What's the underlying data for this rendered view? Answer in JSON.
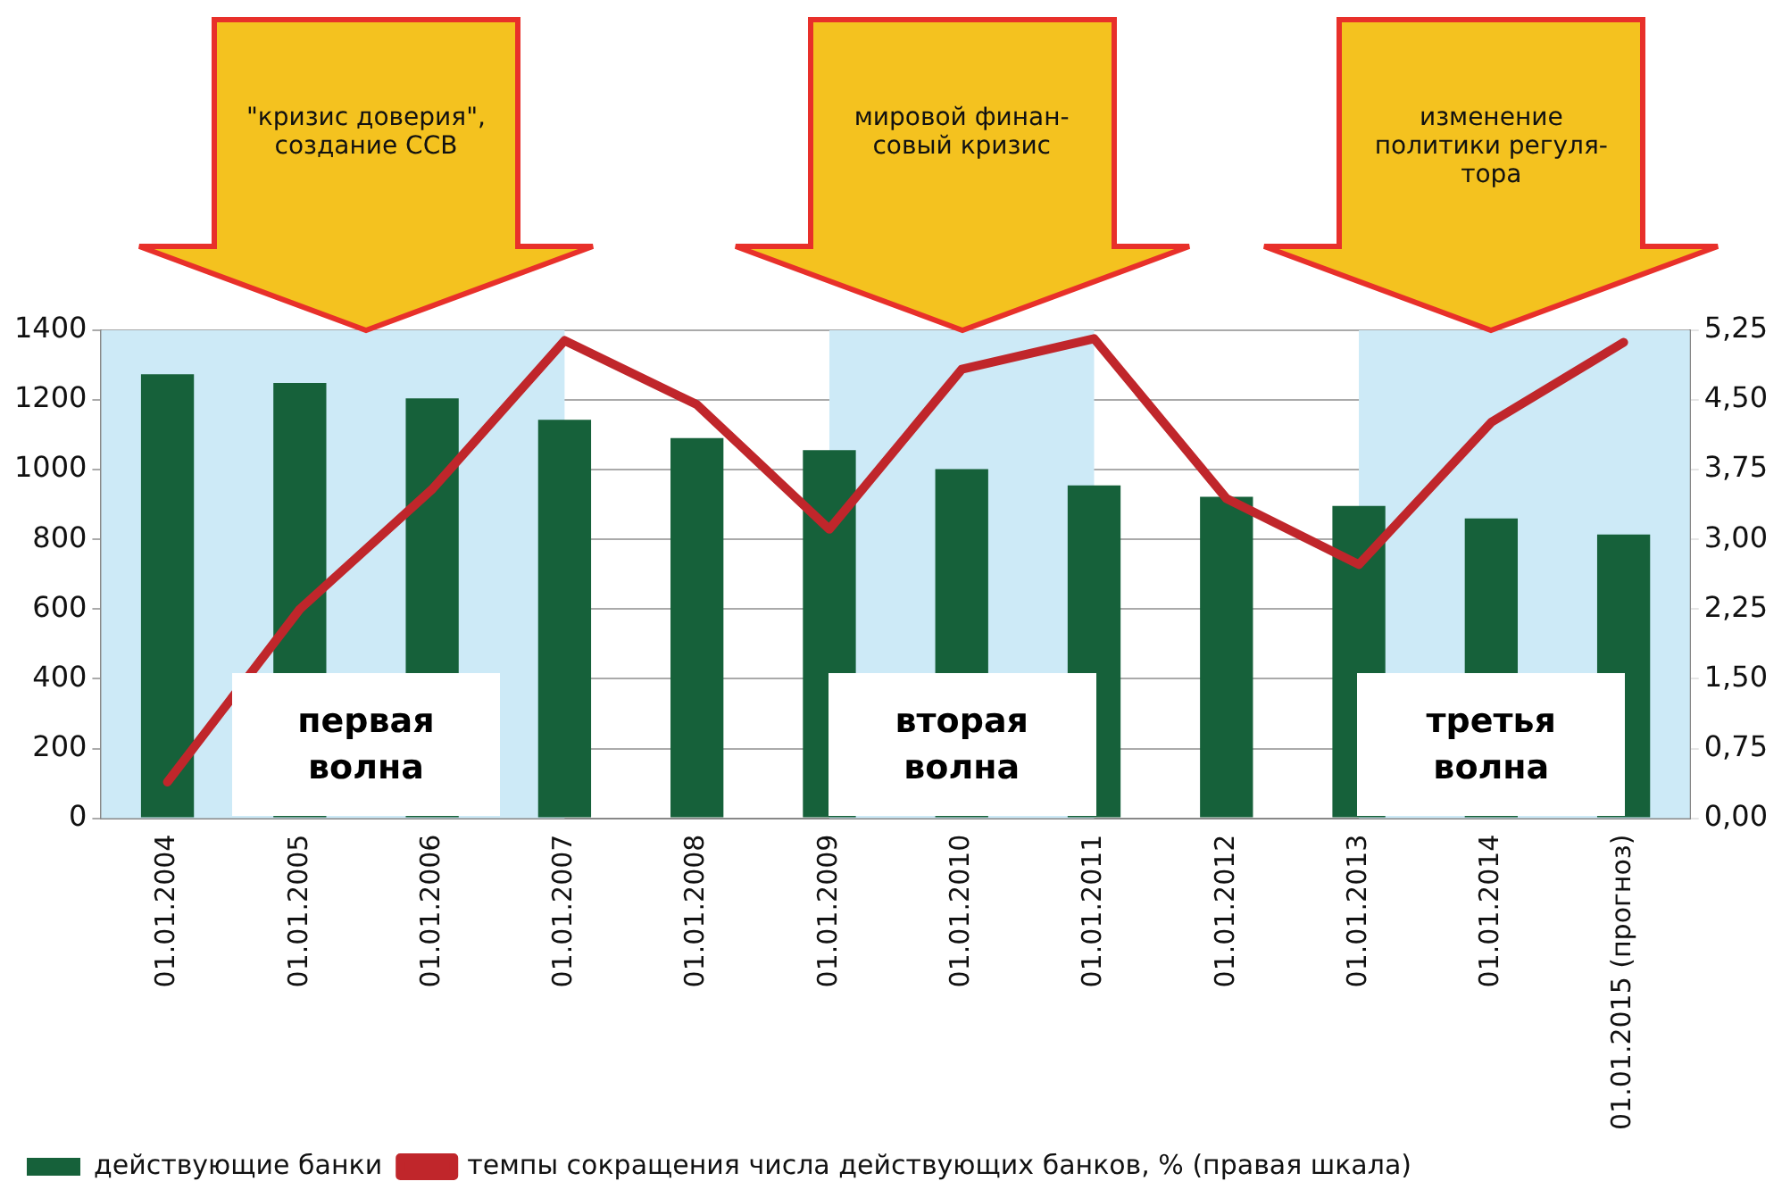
{
  "chart_data": {
    "type": "bar",
    "categories": [
      "01.01.2004",
      "01.01.2005",
      "01.01.2006",
      "01.01.2007",
      "01.01.2008",
      "01.01.2009",
      "01.01.2010",
      "01.01.2011",
      "01.01.2012",
      "01.01.2013",
      "01.01.2014",
      "01.01.2015 (прогноз)"
    ],
    "series": [
      {
        "name": "действующие банки",
        "color": "#16613a",
        "values": [
          1274,
          1249,
          1205,
          1143,
          1091,
          1056,
          1002,
          955,
          922,
          896,
          860,
          814
        ]
      },
      {
        "name": "темпы сокращения числа действующих банков, % (правая шкала)",
        "type": "line",
        "axis": "y2",
        "color": "#c0262b",
        "values": [
          0.39,
          2.25,
          3.54,
          5.14,
          4.45,
          3.11,
          4.83,
          5.16,
          3.44,
          2.73,
          4.26,
          5.12
        ]
      }
    ],
    "ylim": [
      0,
      1400
    ],
    "yticks": [
      0,
      200,
      400,
      600,
      800,
      1000,
      1200,
      1400
    ],
    "y2lim": [
      0,
      5.25
    ],
    "y2ticks": [
      {
        "value": 0,
        "label": "0,00"
      },
      {
        "value": 0.75,
        "label": "0,75"
      },
      {
        "value": 1.5,
        "label": "1,50"
      },
      {
        "value": 2.25,
        "label": "2,25"
      },
      {
        "value": 3,
        "label": "3,00"
      },
      {
        "value": 3.75,
        "label": "3,75"
      },
      {
        "value": 4.5,
        "label": "4,50"
      },
      {
        "value": 5.25,
        "label": "5,25"
      }
    ],
    "grid": "y",
    "legend": "bottom",
    "marker": "none",
    "line_style": "solid",
    "bands": [
      {
        "axis": "x",
        "from": "01.01.2004",
        "to": "01.01.2007",
        "label": "первая\nволна",
        "color": "#cdeaf7"
      },
      {
        "axis": "x",
        "from": "01.01.2009",
        "to": "01.01.2011",
        "label": "вторая\nволна",
        "color": "#cdeaf7"
      },
      {
        "axis": "x",
        "from": "01.01.2013",
        "to": "01.01.2015 (прогноз)",
        "label": "третья\nволна",
        "color": "#cdeaf7"
      }
    ],
    "annotations": [
      "\"кризис доверия\",\nсоздание ССВ",
      "мировой финан-\nсовый кризис",
      "изменение\nполитики регуля-\nтора"
    ]
  }
}
